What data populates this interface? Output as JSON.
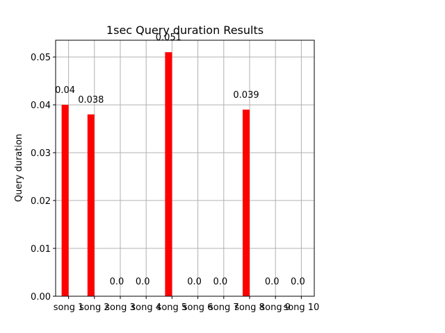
{
  "chart_data": {
    "type": "bar",
    "title": "1sec Query duration Results",
    "xlabel": "",
    "ylabel": "Query duration",
    "categories": [
      "song 1",
      "song 2",
      "song 3",
      "song 4",
      "song 5",
      "song 6",
      "song 7",
      "song 8",
      "song 9",
      "song 10"
    ],
    "values": [
      0.04,
      0.038,
      0.0,
      0.0,
      0.051,
      0.0,
      0.0,
      0.039,
      0.0,
      0.0
    ],
    "data_labels": [
      "0.04",
      "0.038",
      "0.0",
      "0.0",
      "0.051",
      "0.0",
      "0.0",
      "0.039",
      "0.0",
      "0.0"
    ],
    "ylim": [
      0,
      0.0535
    ],
    "yticks": [
      0.0,
      0.01,
      0.02,
      0.03,
      0.04,
      0.05
    ],
    "ytick_labels": [
      "0.00",
      "0.01",
      "0.02",
      "0.03",
      "0.04",
      "0.05"
    ],
    "grid": true,
    "bar_color": "#ff0000",
    "grid_color": "#b0b0b0"
  }
}
